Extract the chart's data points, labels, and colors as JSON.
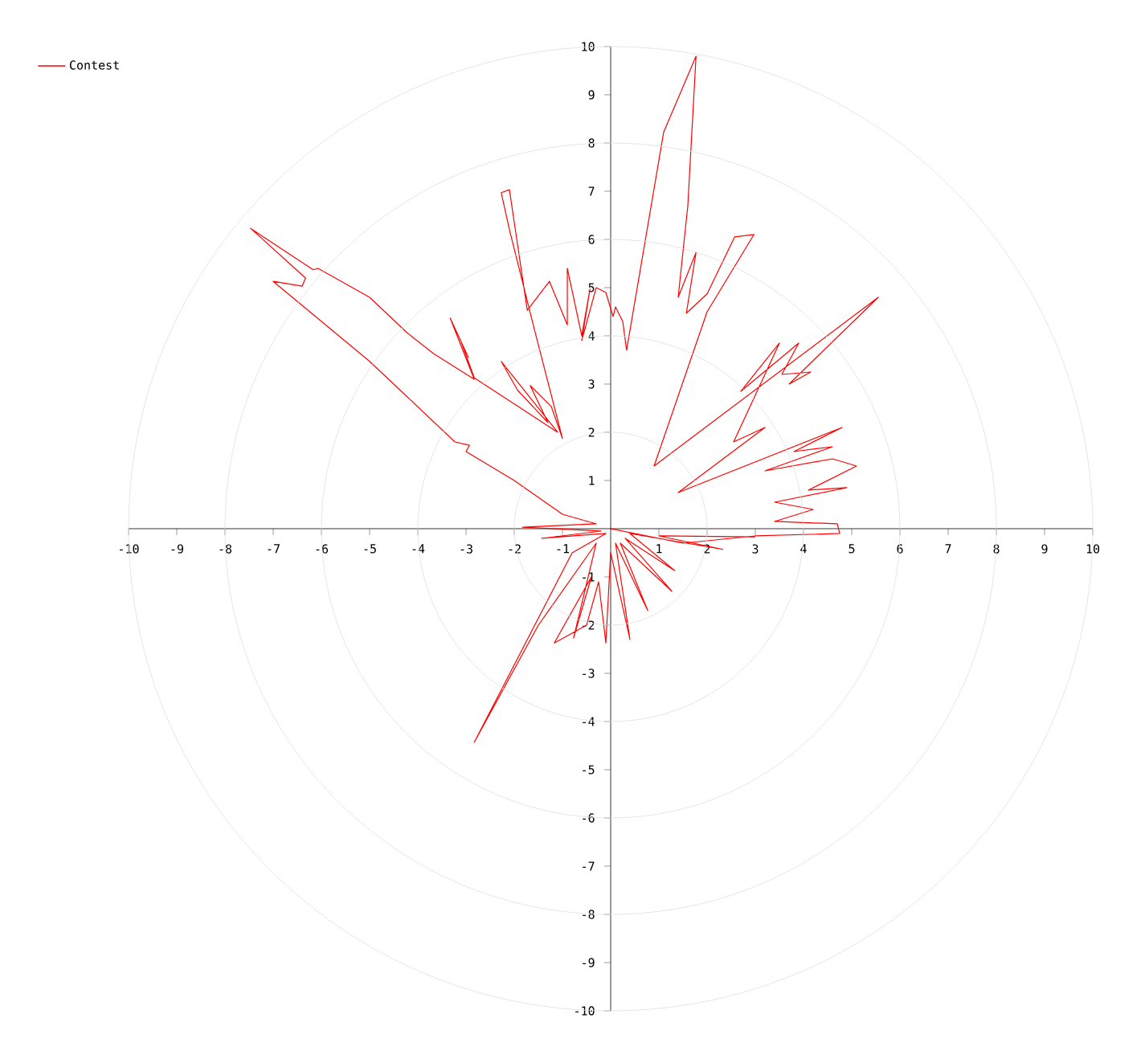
{
  "chart_data": {
    "type": "line",
    "series": [
      {
        "name": "Contest",
        "color": "#ff0000",
        "x": [
          0,
          1.5,
          3,
          4.75,
          4.7,
          3.4,
          4.2,
          3.4,
          4.9,
          4.1,
          5.1,
          4.6,
          3.2,
          4.6,
          3.8,
          4.8,
          1.4,
          3.2,
          2.55,
          3.5,
          2.7,
          3.9,
          3.55,
          4.15,
          3.7,
          5.55,
          0.9,
          2.0,
          2.97,
          2.57,
          2.0,
          1.57,
          1.77,
          1.4,
          1.6,
          1.77,
          1.1,
          0.33,
          0.25,
          0.1,
          0.05,
          -0.1,
          -0.3,
          -0.6,
          -0.43,
          -0.6,
          -0.9,
          -0.9,
          -1.27,
          -1.73,
          -2.1,
          -2.27,
          -2.1,
          -1.6,
          -1.0,
          -1.23,
          -1.67,
          -1.3,
          -1.93,
          -2.27,
          -1.1,
          -2.83,
          -3.1,
          -2.95,
          -3.33,
          -2.83,
          -3.67,
          -4.23,
          -5.0,
          -6.07,
          -6.17,
          -7.47,
          -6.33,
          -6.4,
          -7.0,
          -5.0,
          -3.23,
          -2.93,
          -3.0,
          -2.0,
          -1.0,
          -0.3,
          -1.83,
          -0.2,
          -1.43,
          -0.1,
          -0.8,
          -2.83,
          -1.5,
          -0.3,
          -0.77,
          -0.4,
          -1.17,
          -0.5,
          -0.25,
          -0.1,
          0.0,
          0.4,
          0.1,
          0.77,
          0.2,
          1.27,
          0.3,
          1.33,
          0.4,
          2.33,
          1.0,
          3.0
        ],
        "values": [
          0,
          -0.3,
          -0.15,
          -0.1,
          0.1,
          0.15,
          0.4,
          0.55,
          0.85,
          0.8,
          1.3,
          1.45,
          1.2,
          1.7,
          1.6,
          2.1,
          0.75,
          2.1,
          1.8,
          3.85,
          2.85,
          3.85,
          3.2,
          3.25,
          3.0,
          4.8,
          1.3,
          4.5,
          6.1,
          6.05,
          4.87,
          4.47,
          5.73,
          4.8,
          6.7,
          9.8,
          8.23,
          3.7,
          4.3,
          4.6,
          4.4,
          4.9,
          5.0,
          3.9,
          4.97,
          4.0,
          5.4,
          4.23,
          5.13,
          4.53,
          7.03,
          6.97,
          6.2,
          4.2,
          1.87,
          2.53,
          2.97,
          2.2,
          2.87,
          3.47,
          2.0,
          3.13,
          3.87,
          3.55,
          4.37,
          3.1,
          3.63,
          4.07,
          4.8,
          5.4,
          5.37,
          6.23,
          5.2,
          5.03,
          5.13,
          3.47,
          1.8,
          1.73,
          1.6,
          1.0,
          0.3,
          0.1,
          0.03,
          -0.05,
          -0.2,
          -0.1,
          -0.5,
          -4.43,
          -2.0,
          -0.3,
          -2.27,
          -1.0,
          -2.37,
          -2.0,
          -1.1,
          -2.37,
          -0.5,
          -2.3,
          -0.3,
          -1.7,
          -0.3,
          -1.3,
          -0.2,
          -0.87,
          -0.1,
          -0.43,
          -0.15,
          -0.17
        ]
      }
    ],
    "xlim": [
      -10,
      10
    ],
    "ylim": [
      -10,
      10
    ],
    "xticks": [
      -10,
      -9,
      -8,
      -7,
      -6,
      -5,
      -4,
      -3,
      -2,
      -1,
      1,
      2,
      3,
      4,
      5,
      6,
      7,
      8,
      9,
      10
    ],
    "yticks": [
      -10,
      -9,
      -8,
      -7,
      -6,
      -5,
      -4,
      -3,
      -2,
      -1,
      1,
      2,
      3,
      4,
      5,
      6,
      7,
      8,
      9,
      10
    ],
    "legend": "top left",
    "marker": "none",
    "line_style": "solid"
  }
}
